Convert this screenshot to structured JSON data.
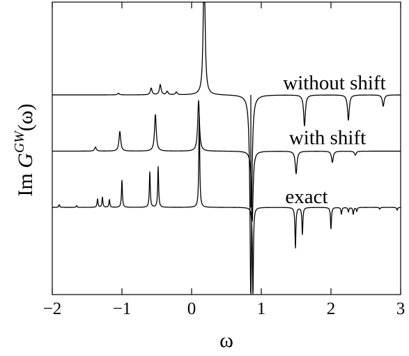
{
  "chart_data": {
    "type": "line",
    "title": "",
    "xlabel": "ω",
    "ylabel": {
      "prefix": "Im ",
      "symbol": "G",
      "superscript": "GW",
      "suffix": "(ω)"
    },
    "xlim": [
      -2,
      3
    ],
    "x_ticks": [
      -2,
      -1,
      0,
      1,
      2,
      3
    ],
    "x_tick_labels": [
      "−2",
      "−1",
      "0",
      "1",
      "2",
      "3"
    ],
    "y_ticks_visible": false,
    "grid": false,
    "legend": "inline labels on curves",
    "vertical_marker_x": 0.85,
    "series": [
      {
        "name": "without shift",
        "baseline": 0.0,
        "broadening": 0.015,
        "peaks": [
          {
            "x": 0.18,
            "a": 2.5
          },
          {
            "x": -0.58,
            "a": 0.12
          },
          {
            "x": -0.45,
            "a": 0.18
          },
          {
            "x": -0.35,
            "a": 0.06
          },
          {
            "x": -0.22,
            "a": 0.05
          },
          {
            "x": -1.05,
            "a": 0.03
          },
          {
            "x": 0.85,
            "a": -3.6
          },
          {
            "x": 1.62,
            "a": -0.55
          },
          {
            "x": 2.25,
            "a": -0.45
          },
          {
            "x": 2.75,
            "a": -0.2
          }
        ]
      },
      {
        "name": "with shift",
        "baseline": -1.0,
        "broadening": 0.015,
        "peaks": [
          {
            "x": -1.38,
            "a": 0.07
          },
          {
            "x": -1.03,
            "a": 0.35
          },
          {
            "x": -0.52,
            "a": 0.65
          },
          {
            "x": 0.1,
            "a": 0.9
          },
          {
            "x": 0.87,
            "a": -1.25
          },
          {
            "x": 1.5,
            "a": -0.4
          },
          {
            "x": 2.02,
            "a": -0.2
          },
          {
            "x": 2.35,
            "a": -0.07
          }
        ]
      },
      {
        "name": "exact",
        "baseline": -2.0,
        "broadening": 0.008,
        "peaks": [
          {
            "x": -1.9,
            "a": 0.05
          },
          {
            "x": -1.65,
            "a": 0.03
          },
          {
            "x": -1.35,
            "a": 0.15
          },
          {
            "x": -1.28,
            "a": 0.18
          },
          {
            "x": -1.18,
            "a": 0.14
          },
          {
            "x": -1.0,
            "a": 0.48
          },
          {
            "x": -0.6,
            "a": 0.63
          },
          {
            "x": -0.48,
            "a": 0.72
          },
          {
            "x": 0.11,
            "a": 1.63
          },
          {
            "x": 0.88,
            "a": -1.6
          },
          {
            "x": 1.49,
            "a": -0.72
          },
          {
            "x": 1.59,
            "a": -0.48
          },
          {
            "x": 2.0,
            "a": -0.38
          },
          {
            "x": 2.15,
            "a": -0.12
          },
          {
            "x": 2.25,
            "a": -0.08
          },
          {
            "x": 2.32,
            "a": -0.12
          },
          {
            "x": 2.37,
            "a": -0.07
          },
          {
            "x": 2.7,
            "a": -0.03
          },
          {
            "x": 2.95,
            "a": -0.05
          }
        ]
      }
    ]
  }
}
